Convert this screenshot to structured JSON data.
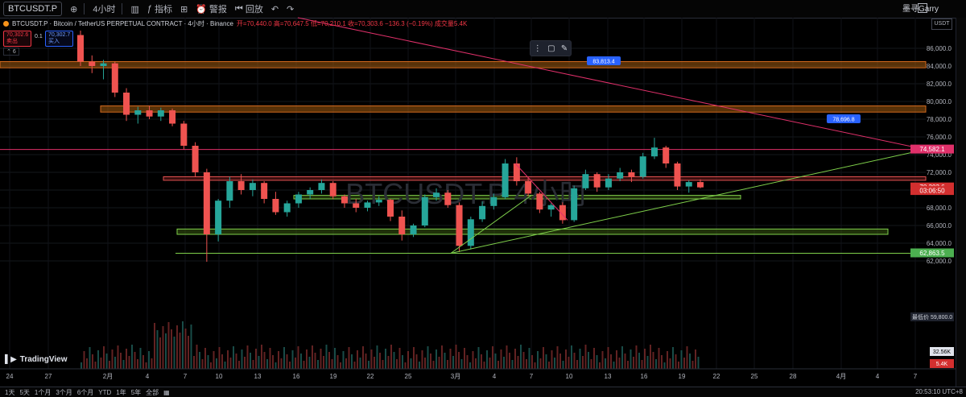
{
  "toolbar": {
    "symbol": "BTCUSDT.P",
    "interval": "4小时",
    "indicators_label": "指标",
    "alert_label": "警报",
    "replay_label": "回放",
    "user": "墨寻Garry"
  },
  "legend": {
    "title": "BTCUSDT.P · Bitcoin / TetherUS PERPETUAL CONTRACT · 4小时 · Binance",
    "ohlc": "开=70,440.0 高=70,647.5 低=70,210.1 收=70,303.6 −136.3 (−0.19%) 成交量5.4K",
    "sell_price": "70,302.6",
    "sell_label": "卖出",
    "spread": "0.1",
    "buy_price": "70,302.7",
    "buy_label": "买入",
    "indicator_count": "6"
  },
  "watermark": "BTCUSDT.P 4小时",
  "axis": {
    "currency": "USDT",
    "y_ticks": [
      "86,000.0",
      "84,000.0",
      "82,000.0",
      "80,000.0",
      "78,000.0",
      "76,000.0",
      "74,000.0",
      "72,000.0",
      "70,000.0",
      "68,000.0",
      "66,000.0",
      "64,000.0",
      "62,000.0"
    ],
    "x_ticks": [
      "24",
      "27",
      "2月",
      "4",
      "7",
      "10",
      "13",
      "16",
      "19",
      "22",
      "25",
      "3月",
      "4",
      "7",
      "10",
      "13",
      "16",
      "19",
      "22",
      "25",
      "28",
      "4月",
      "4",
      "7"
    ],
    "current_price": "70,303.6",
    "countdown": "03:06:50",
    "level_74582": "74,582.1",
    "level_62863": "62,863.5",
    "lowest_label": "最低价",
    "lowest_price": "59,800.0",
    "volume_ma": "32.56K",
    "volume": "5.4K",
    "ann_83813": "83,813.4",
    "ann_78696": "78,696.8"
  },
  "bottom": {
    "ranges": [
      "1天",
      "5天",
      "1个月",
      "3个月",
      "6个月",
      "YTD",
      "1年",
      "5年",
      "全部"
    ],
    "clock": "20:53:10 UTC+8"
  },
  "logo": "TradingView",
  "colors": {
    "up": "#26a69a",
    "down": "#ef5350",
    "zone": "#a05a0e",
    "trend_red": "#e0306a",
    "trend_green": "#7ecf4a",
    "bg": "#000000"
  },
  "chart_data": {
    "type": "candlestick",
    "ylim": [
      61000,
      87500
    ],
    "candles": [
      [
        87500,
        88000,
        84000,
        84500
      ],
      [
        84500,
        85200,
        83200,
        84000
      ],
      [
        84000,
        84700,
        82500,
        84300
      ],
      [
        84300,
        84500,
        80500,
        81000
      ],
      [
        81000,
        81500,
        77800,
        78500
      ],
      [
        78500,
        79400,
        77500,
        79000
      ],
      [
        79000,
        79500,
        78000,
        78300
      ],
      [
        78300,
        79300,
        77800,
        79000
      ],
      [
        79000,
        79200,
        77200,
        77500
      ],
      [
        77500,
        77800,
        74600,
        75000
      ],
      [
        75000,
        75400,
        71500,
        72000
      ],
      [
        72000,
        72400,
        61900,
        65000
      ],
      [
        65000,
        69000,
        64200,
        68800
      ],
      [
        68800,
        71500,
        68000,
        71000
      ],
      [
        71000,
        71800,
        69500,
        70000
      ],
      [
        70000,
        71200,
        69300,
        70800
      ],
      [
        70800,
        71000,
        68500,
        69000
      ],
      [
        69000,
        69800,
        67200,
        67500
      ],
      [
        67500,
        68800,
        67000,
        68500
      ],
      [
        68500,
        69800,
        68000,
        69500
      ],
      [
        69500,
        70300,
        69000,
        70000
      ],
      [
        70000,
        71200,
        69600,
        70800
      ],
      [
        70800,
        71000,
        69000,
        69300
      ],
      [
        69300,
        69500,
        68000,
        68500
      ],
      [
        68500,
        69000,
        67500,
        68000
      ],
      [
        68000,
        68800,
        67600,
        68600
      ],
      [
        68600,
        69300,
        68200,
        68900
      ],
      [
        68900,
        69000,
        66500,
        67000
      ],
      [
        67000,
        67700,
        64300,
        65000
      ],
      [
        65000,
        66200,
        64700,
        66000
      ],
      [
        66000,
        69500,
        65800,
        69200
      ],
      [
        69200,
        70200,
        68800,
        69700
      ],
      [
        69700,
        70000,
        68000,
        68300
      ],
      [
        68300,
        68600,
        63000,
        63700
      ],
      [
        63700,
        67000,
        63300,
        66700
      ],
      [
        66700,
        68700,
        66400,
        68200
      ],
      [
        68200,
        69600,
        67800,
        69200
      ],
      [
        69200,
        73500,
        69000,
        73000
      ],
      [
        73000,
        73700,
        70500,
        71000
      ],
      [
        71000,
        71400,
        69300,
        69600
      ],
      [
        69600,
        69800,
        67400,
        67800
      ],
      [
        67800,
        68500,
        67000,
        68300
      ],
      [
        68300,
        68600,
        66200,
        66600
      ],
      [
        66600,
        70500,
        66400,
        70200
      ],
      [
        70200,
        72300,
        70000,
        71800
      ],
      [
        71800,
        72000,
        69800,
        70300
      ],
      [
        70300,
        71800,
        70000,
        71300
      ],
      [
        71300,
        72500,
        71000,
        72000
      ],
      [
        72000,
        72300,
        70900,
        71500
      ],
      [
        71500,
        74200,
        71300,
        73800
      ],
      [
        73800,
        75900,
        73500,
        74800
      ],
      [
        74800,
        75000,
        72500,
        73000
      ],
      [
        73000,
        73200,
        70000,
        70400
      ],
      [
        70400,
        71100,
        69700,
        70900
      ],
      [
        70900,
        71200,
        70200,
        70303
      ]
    ]
  }
}
